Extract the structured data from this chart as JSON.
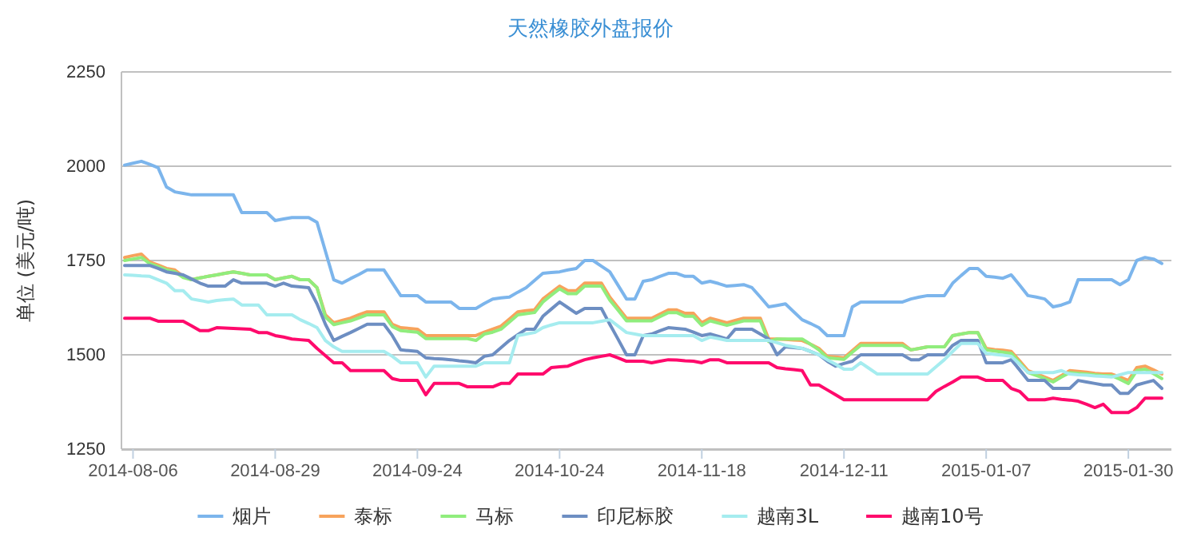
{
  "chart_data": {
    "type": "line",
    "title": "天然橡胶外盘报价",
    "ylabel": "单位 (美元/吨)",
    "categories": [
      null,
      "2014-08-06",
      null,
      null,
      null,
      null,
      null,
      null,
      null,
      null,
      null,
      null,
      null,
      null,
      null,
      null,
      null,
      null,
      "2014-08-29",
      null,
      null,
      null,
      null,
      null,
      null,
      null,
      null,
      null,
      null,
      null,
      null,
      null,
      null,
      null,
      null,
      "2014-09-24",
      null,
      null,
      null,
      null,
      null,
      null,
      null,
      null,
      null,
      null,
      null,
      null,
      null,
      null,
      null,
      null,
      "2014-10-24",
      null,
      null,
      null,
      null,
      null,
      null,
      null,
      null,
      null,
      null,
      null,
      null,
      null,
      null,
      null,
      null,
      "2014-11-18",
      null,
      null,
      null,
      null,
      null,
      null,
      null,
      null,
      null,
      null,
      null,
      null,
      null,
      null,
      null,
      null,
      "2014-12-11",
      null,
      null,
      null,
      null,
      null,
      null,
      null,
      null,
      null,
      null,
      null,
      null,
      null,
      null,
      null,
      null,
      "2015-01-07",
      null,
      null,
      null,
      null,
      null,
      null,
      null,
      null,
      null,
      null,
      null,
      null,
      null,
      null,
      null,
      null,
      "2015-01-30",
      null,
      null,
      null,
      null
    ],
    "ylim": [
      1250,
      2250
    ],
    "yticks": [
      1250,
      1500,
      1750,
      2000,
      2250
    ],
    "grid": "y",
    "legend": "bottom",
    "marker": "none",
    "line_style": "solid",
    "series": [
      {
        "name": "烟片",
        "color": "#7cb5ec",
        "values": [
          2003,
          2008,
          2013,
          2005,
          1996,
          1945,
          1932,
          1928,
          1924,
          1924,
          1924,
          1924,
          1924,
          1924,
          1877,
          1877,
          1877,
          1877,
          1856,
          1860,
          1864,
          1864,
          1864,
          1851,
          1775,
          1699,
          1690,
          1702,
          1713,
          1725,
          1725,
          1725,
          1691,
          1657,
          1657,
          1657,
          1640,
          1640,
          1640,
          1640,
          1623,
          1623,
          1623,
          1636,
          1648,
          1651,
          1653,
          1666,
          1678,
          1697,
          1716,
          1718,
          1720,
          1725,
          1729,
          1750,
          1750,
          1735,
          1720,
          1684,
          1648,
          1648,
          1695,
          1699,
          1708,
          1716,
          1716,
          1708,
          1708,
          1690,
          1695,
          1689,
          1682,
          1684,
          1686,
          1678,
          1653,
          1627,
          1631,
          1635,
          1614,
          1593,
          1583,
          1572,
          1551,
          1551,
          1551,
          1627,
          1640,
          1640,
          1640,
          1640,
          1640,
          1640,
          1648,
          1653,
          1657,
          1657,
          1657,
          1690,
          1710,
          1729,
          1729,
          1708,
          1706,
          1703,
          1712,
          1685,
          1657,
          1653,
          1648,
          1627,
          1632,
          1640,
          1699,
          1699,
          1699,
          1699,
          1699,
          1686,
          1699,
          1750,
          1758,
          1754,
          1742
        ]
      },
      {
        "name": "泰标",
        "color": "#f7a35c",
        "values": [
          1758,
          1763,
          1767,
          1746,
          1738,
          1729,
          1725,
          1708,
          1699,
          1704,
          1708,
          1712,
          1716,
          1720,
          1716,
          1712,
          1712,
          1712,
          1699,
          1704,
          1708,
          1699,
          1699,
          1678,
          1606,
          1585,
          1591,
          1597,
          1606,
          1614,
          1614,
          1614,
          1581,
          1572,
          1570,
          1568,
          1551,
          1551,
          1551,
          1551,
          1551,
          1551,
          1551,
          1560,
          1568,
          1576,
          1595,
          1614,
          1617,
          1619,
          1648,
          1665,
          1682,
          1670,
          1670,
          1690,
          1690,
          1690,
          1653,
          1625,
          1597,
          1597,
          1597,
          1597,
          1608,
          1619,
          1619,
          1610,
          1610,
          1585,
          1597,
          1591,
          1585,
          1591,
          1597,
          1597,
          1597,
          1542,
          1542,
          1541,
          1539,
          1538,
          1528,
          1517,
          1496,
          1494,
          1492,
          1511,
          1530,
          1530,
          1530,
          1530,
          1530,
          1530,
          1513,
          1517,
          1521,
          1521,
          1521,
          1551,
          1555,
          1559,
          1559,
          1517,
          1514,
          1512,
          1509,
          1484,
          1458,
          1450,
          1441,
          1432,
          1445,
          1458,
          1456,
          1454,
          1451,
          1449,
          1449,
          1441,
          1432,
          1466,
          1470,
          1460,
          1449
        ]
      },
      {
        "name": "马标",
        "color": "#90ed7d",
        "values": [
          1750,
          1754,
          1758,
          1742,
          1734,
          1725,
          1720,
          1705,
          1699,
          1704,
          1708,
          1712,
          1716,
          1720,
          1716,
          1712,
          1712,
          1712,
          1699,
          1704,
          1708,
          1699,
          1699,
          1678,
          1600,
          1580,
          1585,
          1590,
          1598,
          1606,
          1606,
          1606,
          1575,
          1564,
          1562,
          1560,
          1543,
          1543,
          1543,
          1543,
          1543,
          1543,
          1538,
          1555,
          1560,
          1568,
          1587,
          1606,
          1609,
          1612,
          1640,
          1658,
          1675,
          1662,
          1662,
          1682,
          1682,
          1682,
          1645,
          1618,
          1590,
          1590,
          1590,
          1590,
          1601,
          1612,
          1612,
          1602,
          1602,
          1578,
          1590,
          1584,
          1578,
          1584,
          1590,
          1590,
          1590,
          1535,
          1542,
          1542,
          1542,
          1542,
          1528,
          1513,
          1492,
          1490,
          1488,
          1507,
          1525,
          1525,
          1525,
          1525,
          1525,
          1525,
          1513,
          1517,
          1521,
          1521,
          1521,
          1551,
          1555,
          1559,
          1559,
          1513,
          1510,
          1507,
          1504,
          1479,
          1453,
          1445,
          1437,
          1428,
          1441,
          1453,
          1451,
          1449,
          1447,
          1445,
          1445,
          1435,
          1424,
          1458,
          1462,
          1450,
          1437
        ]
      },
      {
        "name": "印尼标胶",
        "color": "#6d8ec2",
        "values": [
          1737,
          1737,
          1737,
          1737,
          1729,
          1720,
          1716,
          1712,
          1701,
          1690,
          1682,
          1682,
          1682,
          1699,
          1690,
          1690,
          1690,
          1690,
          1682,
          1690,
          1682,
          1680,
          1678,
          1635,
          1581,
          1538,
          1549,
          1559,
          1570,
          1581,
          1581,
          1581,
          1551,
          1513,
          1511,
          1509,
          1492,
          1490,
          1489,
          1487,
          1484,
          1482,
          1479,
          1496,
          1500,
          1519,
          1538,
          1553,
          1568,
          1568,
          1602,
          1621,
          1640,
          1625,
          1610,
          1623,
          1623,
          1623,
          1581,
          1541,
          1500,
          1500,
          1551,
          1555,
          1564,
          1572,
          1570,
          1568,
          1560,
          1551,
          1555,
          1549,
          1542,
          1568,
          1568,
          1568,
          1555,
          1542,
          1500,
          1521,
          1519,
          1517,
          1509,
          1500,
          1483,
          1470,
          1477,
          1483,
          1500,
          1500,
          1500,
          1500,
          1500,
          1500,
          1487,
          1487,
          1500,
          1500,
          1500,
          1525,
          1538,
          1538,
          1538,
          1479,
          1479,
          1479,
          1487,
          1460,
          1432,
          1432,
          1432,
          1411,
          1411,
          1411,
          1432,
          1428,
          1424,
          1420,
          1420,
          1398,
          1398,
          1420,
          1426,
          1432,
          1411
        ]
      },
      {
        "name": "越南3L",
        "color": "#a5ecef",
        "values": [
          1712,
          1711,
          1709,
          1708,
          1699,
          1690,
          1670,
          1670,
          1648,
          1644,
          1640,
          1644,
          1646,
          1648,
          1632,
          1632,
          1632,
          1606,
          1606,
          1606,
          1606,
          1593,
          1583,
          1572,
          1538,
          1521,
          1509,
          1509,
          1509,
          1509,
          1509,
          1509,
          1496,
          1479,
          1479,
          1479,
          1441,
          1470,
          1470,
          1470,
          1470,
          1470,
          1470,
          1479,
          1479,
          1479,
          1479,
          1551,
          1555,
          1559,
          1572,
          1579,
          1585,
          1585,
          1585,
          1585,
          1585,
          1589,
          1593,
          1576,
          1559,
          1555,
          1551,
          1551,
          1551,
          1551,
          1551,
          1551,
          1551,
          1538,
          1547,
          1543,
          1538,
          1538,
          1538,
          1538,
          1538,
          1538,
          1532,
          1525,
          1521,
          1517,
          1509,
          1500,
          1487,
          1475,
          1462,
          1462,
          1479,
          1464,
          1449,
          1449,
          1449,
          1449,
          1449,
          1449,
          1449,
          1468,
          1487,
          1509,
          1530,
          1530,
          1530,
          1504,
          1501,
          1499,
          1496,
          1475,
          1453,
          1453,
          1453,
          1453,
          1458,
          1449,
          1447,
          1446,
          1444,
          1443,
          1441,
          1447,
          1453,
          1453,
          1453,
          1453,
          1453
        ]
      },
      {
        "name": "越南10号",
        "color": "#ff0a6c",
        "values": [
          1597,
          1597,
          1597,
          1597,
          1589,
          1589,
          1589,
          1589,
          1577,
          1564,
          1564,
          1572,
          1571,
          1570,
          1569,
          1568,
          1559,
          1559,
          1551,
          1547,
          1542,
          1540,
          1538,
          1517,
          1498,
          1479,
          1479,
          1458,
          1458,
          1458,
          1458,
          1458,
          1437,
          1432,
          1432,
          1432,
          1394,
          1424,
          1424,
          1424,
          1424,
          1415,
          1415,
          1415,
          1415,
          1424,
          1424,
          1449,
          1449,
          1449,
          1449,
          1466,
          1468,
          1470,
          1479,
          1487,
          1492,
          1496,
          1500,
          1492,
          1483,
          1483,
          1483,
          1479,
          1483,
          1487,
          1486,
          1484,
          1483,
          1479,
          1487,
          1487,
          1479,
          1479,
          1479,
          1479,
          1479,
          1479,
          1466,
          1463,
          1461,
          1458,
          1420,
          1420,
          1407,
          1394,
          1381,
          1381,
          1381,
          1381,
          1381,
          1381,
          1381,
          1381,
          1381,
          1381,
          1381,
          1403,
          1416,
          1428,
          1441,
          1441,
          1441,
          1432,
          1432,
          1432,
          1411,
          1403,
          1381,
          1381,
          1381,
          1385,
          1382,
          1380,
          1377,
          1369,
          1360,
          1369,
          1347,
          1347,
          1347,
          1360,
          1385,
          1385,
          1385
        ]
      }
    ]
  }
}
